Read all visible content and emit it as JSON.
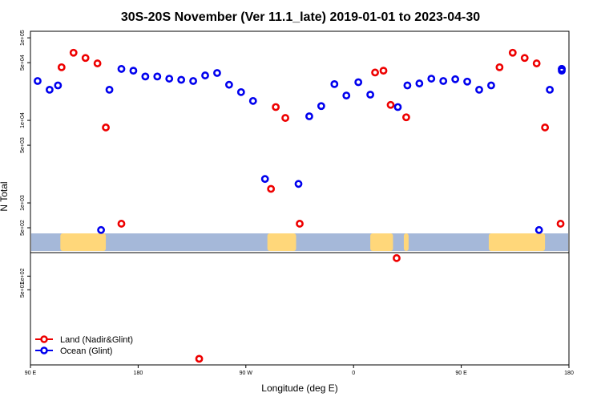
{
  "chart_data": {
    "type": "scatter",
    "title": "30S-20S November (Ver 11.1_late)   2019-01-01 to 2023-04-30",
    "xlabel": "Longitude (deg E)",
    "ylabel": "N Total",
    "x_ticks": [
      {
        "value": 90,
        "label": "90 E"
      },
      {
        "value": 180,
        "label": "180"
      },
      {
        "value": 270,
        "label": "90 W"
      },
      {
        "value": 360,
        "label": "0"
      },
      {
        "value": 450,
        "label": "90 E"
      },
      {
        "value": 540,
        "label": "180"
      }
    ],
    "xlim": [
      90,
      540
    ],
    "y_scale": "log",
    "panels": [
      {
        "name": "upper",
        "ylim": [
          250,
          120000
        ],
        "y_ticks": [
          {
            "value": 500,
            "label": "5e+02"
          },
          {
            "value": 1000,
            "label": "1e+03"
          },
          {
            "value": 5000,
            "label": "5e+03"
          },
          {
            "value": 10000,
            "label": "1e+04"
          },
          {
            "value": 50000,
            "label": "5e+04"
          },
          {
            "value": 100000,
            "label": "1e+05"
          }
        ]
      },
      {
        "name": "lower",
        "ylim": [
          1.1,
          330
        ],
        "y_ticks": [
          {
            "value": 50,
            "label": "5e+01"
          },
          {
            "value": 100,
            "label": "1e+02"
          }
        ]
      }
    ],
    "series": [
      {
        "name": "Land (Nadir&Glint)",
        "color": "#ee0000",
        "points": [
          {
            "x": 116,
            "y": 44000,
            "panel": "upper"
          },
          {
            "x": 126,
            "y": 66000,
            "panel": "upper"
          },
          {
            "x": 136,
            "y": 57000,
            "panel": "upper"
          },
          {
            "x": 146,
            "y": 49000,
            "panel": "upper"
          },
          {
            "x": 153,
            "y": 8200,
            "panel": "upper"
          },
          {
            "x": 166,
            "y": 560,
            "panel": "upper"
          },
          {
            "x": 291,
            "y": 1480,
            "panel": "upper"
          },
          {
            "x": 295,
            "y": 14500,
            "panel": "upper"
          },
          {
            "x": 303,
            "y": 10700,
            "panel": "upper"
          },
          {
            "x": 315,
            "y": 560,
            "panel": "upper"
          },
          {
            "x": 378,
            "y": 38000,
            "panel": "upper"
          },
          {
            "x": 385,
            "y": 40000,
            "panel": "upper"
          },
          {
            "x": 391,
            "y": 15400,
            "panel": "upper"
          },
          {
            "x": 404,
            "y": 10900,
            "panel": "upper"
          },
          {
            "x": 482,
            "y": 44000,
            "panel": "upper"
          },
          {
            "x": 493,
            "y": 66000,
            "panel": "upper"
          },
          {
            "x": 503,
            "y": 57000,
            "panel": "upper"
          },
          {
            "x": 513,
            "y": 49000,
            "panel": "upper"
          },
          {
            "x": 520,
            "y": 8200,
            "panel": "upper"
          },
          {
            "x": 533,
            "y": 560,
            "panel": "upper"
          },
          {
            "x": 231,
            "y": 1.5,
            "panel": "lower"
          },
          {
            "x": 396,
            "y": 250,
            "panel": "lower"
          }
        ]
      },
      {
        "name": "Ocean (Glint)",
        "color": "#0000ee",
        "points": [
          {
            "x": 96,
            "y": 30000,
            "panel": "upper"
          },
          {
            "x": 106,
            "y": 23500,
            "panel": "upper"
          },
          {
            "x": 113,
            "y": 26500,
            "panel": "upper"
          },
          {
            "x": 149,
            "y": 470,
            "panel": "upper"
          },
          {
            "x": 156,
            "y": 23500,
            "panel": "upper"
          },
          {
            "x": 166,
            "y": 42000,
            "panel": "upper"
          },
          {
            "x": 176,
            "y": 40000,
            "panel": "upper"
          },
          {
            "x": 186,
            "y": 34000,
            "panel": "upper"
          },
          {
            "x": 196,
            "y": 34000,
            "panel": "upper"
          },
          {
            "x": 206,
            "y": 32000,
            "panel": "upper"
          },
          {
            "x": 216,
            "y": 31000,
            "panel": "upper"
          },
          {
            "x": 226,
            "y": 30000,
            "panel": "upper"
          },
          {
            "x": 236,
            "y": 35000,
            "panel": "upper"
          },
          {
            "x": 246,
            "y": 37500,
            "panel": "upper"
          },
          {
            "x": 256,
            "y": 27000,
            "panel": "upper"
          },
          {
            "x": 266,
            "y": 22000,
            "panel": "upper"
          },
          {
            "x": 276,
            "y": 17200,
            "panel": "upper"
          },
          {
            "x": 286,
            "y": 1950,
            "panel": "upper"
          },
          {
            "x": 314,
            "y": 1700,
            "panel": "upper"
          },
          {
            "x": 323,
            "y": 11200,
            "panel": "upper"
          },
          {
            "x": 333,
            "y": 14900,
            "panel": "upper"
          },
          {
            "x": 344,
            "y": 27500,
            "panel": "upper"
          },
          {
            "x": 354,
            "y": 20000,
            "panel": "upper"
          },
          {
            "x": 364,
            "y": 29000,
            "panel": "upper"
          },
          {
            "x": 374,
            "y": 20500,
            "panel": "upper"
          },
          {
            "x": 397,
            "y": 14500,
            "panel": "upper"
          },
          {
            "x": 405,
            "y": 26500,
            "panel": "upper"
          },
          {
            "x": 415,
            "y": 28000,
            "panel": "upper"
          },
          {
            "x": 425,
            "y": 32000,
            "panel": "upper"
          },
          {
            "x": 435,
            "y": 30000,
            "panel": "upper"
          },
          {
            "x": 445,
            "y": 31500,
            "panel": "upper"
          },
          {
            "x": 455,
            "y": 29500,
            "panel": "upper"
          },
          {
            "x": 465,
            "y": 23500,
            "panel": "upper"
          },
          {
            "x": 475,
            "y": 26500,
            "panel": "upper"
          },
          {
            "x": 515,
            "y": 470,
            "panel": "upper"
          },
          {
            "x": 524,
            "y": 23500,
            "panel": "upper"
          },
          {
            "x": 534,
            "y": 42000,
            "panel": "upper"
          },
          {
            "x": 534,
            "y": 42000,
            "panel": "upper"
          },
          {
            "x": 534,
            "y": 40000,
            "panel": "upper"
          }
        ]
      }
    ],
    "legend": {
      "placement": "bottom-left"
    },
    "background_strip": {
      "ocean_color": "#a5b8d9",
      "land_color": "#ffd77a",
      "land_ranges": [
        {
          "from": 115,
          "to": 153
        },
        {
          "from": 288,
          "to": 312
        },
        {
          "from": 374,
          "to": 393
        },
        {
          "from": 402,
          "to": 406
        },
        {
          "from": 473,
          "to": 520
        }
      ]
    }
  }
}
